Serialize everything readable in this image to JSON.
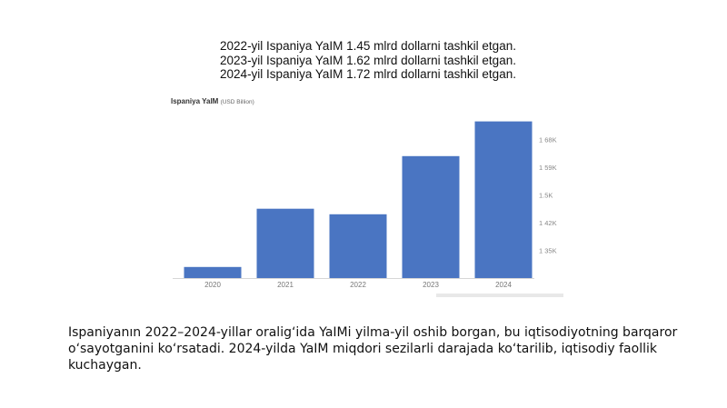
{
  "headline_lines": [
    "2022-yil Ispaniya YaIM  1.45 mlrd dollarni tashkil etgan.",
    "2023-yil Ispaniya YaIM  1.62 mlrd dollarni tashkil etgan.",
    "2024-yil Ispaniya YaIM  1.72 mlrd dollarni tashkil etgan."
  ],
  "caption": "Ispaniyanın 2022–2024-yillar oralig‘ida YaIMi yilma-yil oshib borgan, bu iqtisodiyotning barqaror o‘sayotganini ko‘rsatadi. 2024-yilda YaIM miqdori sezilarli darajada ko‘tarilib, iqtisodiy faollik kuchaygan.",
  "chart_data": {
    "type": "bar",
    "title": "Ispaniya YaIM",
    "unit": "(USD Billion)",
    "categories": [
      "2020",
      "2021",
      "2022",
      "2023",
      "2024"
    ],
    "values": [
      8,
      50,
      46,
      88,
      113
    ],
    "y_ticks": [
      "1 35K",
      "1 42K",
      "1.5K",
      "1 59K",
      "1 68K"
    ],
    "y_tick_positions": [
      20,
      40,
      60,
      80,
      100
    ],
    "ylim": [
      0,
      118
    ],
    "y_axis_side": "right",
    "bar_color": "#4a75c2",
    "grid": false
  }
}
